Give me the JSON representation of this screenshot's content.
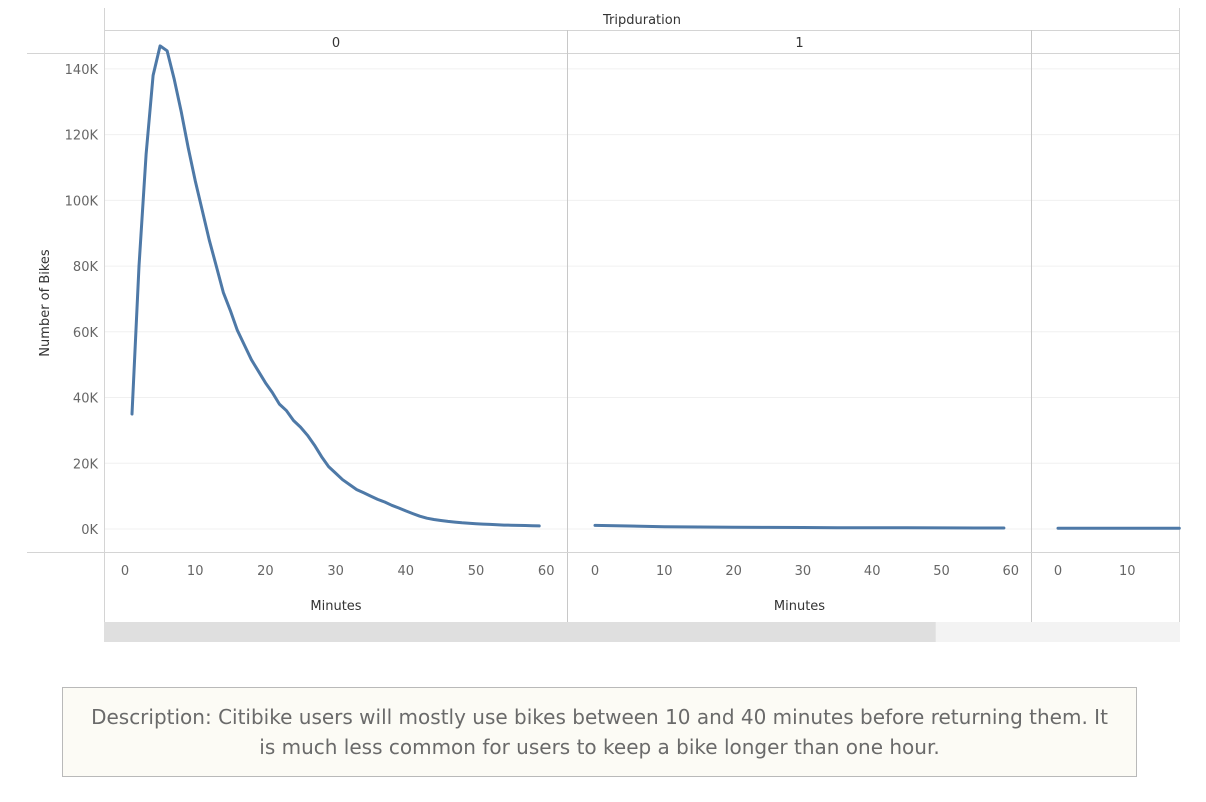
{
  "chart_data": {
    "type": "line",
    "column_header": "Tripduration",
    "panels": [
      {
        "label": "0",
        "x": [
          1,
          2,
          3,
          4,
          5,
          6,
          7,
          8,
          9,
          10,
          11,
          12,
          13,
          14,
          15,
          16,
          17,
          18,
          19,
          20,
          21,
          22,
          23,
          24,
          25,
          26,
          27,
          28,
          29,
          30,
          31,
          32,
          33,
          34,
          35,
          36,
          37,
          38,
          39,
          40,
          41,
          42,
          43,
          44,
          45,
          46,
          47,
          48,
          49,
          50,
          51,
          52,
          53,
          54,
          55,
          56,
          57,
          58,
          59
        ],
        "y": [
          35000,
          80000,
          114000,
          138000,
          147000,
          145500,
          137000,
          127000,
          116000,
          106000,
          97000,
          88000,
          80000,
          72000,
          66500,
          60500,
          56000,
          51500,
          48000,
          44500,
          41500,
          38000,
          36000,
          33000,
          31000,
          28500,
          25500,
          22000,
          19000,
          17000,
          15000,
          13500,
          12000,
          11000,
          10000,
          9000,
          8200,
          7200,
          6400,
          5500,
          4700,
          3900,
          3300,
          2900,
          2600,
          2300,
          2100,
          1900,
          1750,
          1600,
          1500,
          1400,
          1300,
          1200,
          1150,
          1100,
          1050,
          1000,
          950
        ],
        "xlim": [
          0,
          60
        ],
        "xticks": [
          0,
          10,
          20,
          30,
          40,
          50,
          60
        ],
        "xlabel": "Minutes"
      },
      {
        "label": "1",
        "x": [
          0,
          5,
          10,
          15,
          20,
          25,
          30,
          35,
          40,
          45,
          50,
          55,
          59
        ],
        "y": [
          1100,
          900,
          700,
          600,
          550,
          500,
          450,
          400,
          380,
          350,
          330,
          310,
          300
        ],
        "xlim": [
          0,
          60
        ],
        "xticks": [
          0,
          10,
          20,
          30,
          40,
          50,
          60
        ],
        "xlabel": "Minutes"
      },
      {
        "label": "",
        "x": [
          0,
          5,
          10,
          15,
          17.5
        ],
        "y": [
          250,
          240,
          230,
          220,
          215
        ],
        "xlim": [
          0,
          60
        ],
        "xticks": [
          0,
          10
        ],
        "xlabel": ""
      }
    ],
    "ylabel": "Number of Bikes",
    "ylim": [
      0,
      150000
    ],
    "yticks": [
      0,
      20000,
      40000,
      60000,
      80000,
      100000,
      120000,
      140000
    ],
    "ytick_labels": [
      "0K",
      "20K",
      "40K",
      "60K",
      "80K",
      "100K",
      "120K",
      "140K"
    ],
    "grid": true,
    "line_color": "#4e79a7",
    "scrollbar_position": 0.773
  },
  "description": "Description: Citibike users will mostly use bikes between 10 and 40 minutes before returning them. It is much less common for users to keep a bike longer than one hour."
}
